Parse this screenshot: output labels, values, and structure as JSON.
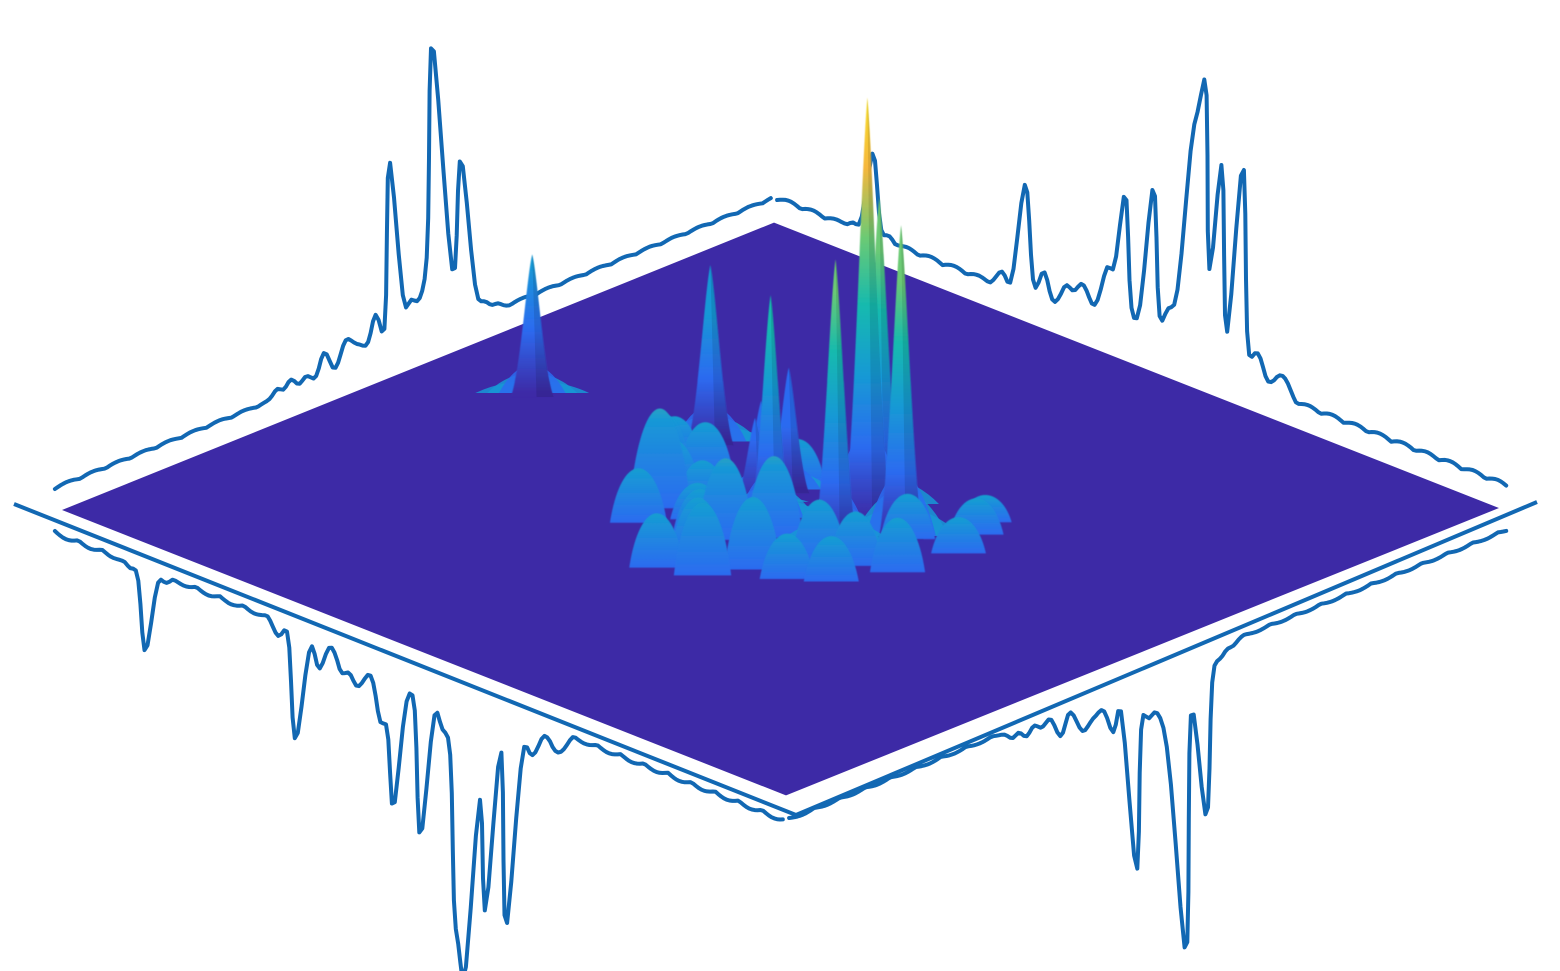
{
  "chart_data": {
    "type": "surface",
    "title": "",
    "xlabel": "",
    "ylabel": "",
    "zlabel": "",
    "grid": false,
    "legend": "none",
    "axes_visible": false,
    "xlim": [
      0,
      1
    ],
    "ylim": [
      0,
      1
    ],
    "zlim": [
      0,
      1
    ],
    "colormap": "parula",
    "colors": {
      "plane": "#3d2aa6",
      "projection_line": "#1268b3",
      "colormap_stops": [
        "#3d2aa6",
        "#2c6bf0",
        "#1898d6",
        "#13b9b0",
        "#6cca74",
        "#f6b73c",
        "#f8e02a"
      ]
    },
    "peaks": [
      {
        "u": 0.128,
        "v": 0.532,
        "height": 0.33,
        "width": 0.01
      },
      {
        "u": 0.335,
        "v": 0.57,
        "height": 0.42,
        "width": 0.012
      },
      {
        "u": 0.452,
        "v": 0.522,
        "height": 0.21,
        "width": 0.009
      },
      {
        "u": 0.47,
        "v": 0.495,
        "height": 0.2,
        "width": 0.009
      },
      {
        "u": 0.472,
        "v": 0.54,
        "height": 0.29,
        "width": 0.009
      },
      {
        "u": 0.508,
        "v": 0.478,
        "height": 0.53,
        "width": 0.009
      },
      {
        "u": 0.56,
        "v": 0.577,
        "height": 0.73,
        "width": 0.01
      },
      {
        "u": 0.575,
        "v": 0.545,
        "height": 1.0,
        "width": 0.011
      },
      {
        "u": 0.6,
        "v": 0.475,
        "height": 0.68,
        "width": 0.01
      },
      {
        "u": 0.63,
        "v": 0.536,
        "height": 0.74,
        "width": 0.01
      },
      {
        "u": 0.415,
        "v": 0.418,
        "height": 0.11,
        "width": 0.01
      },
      {
        "u": 0.365,
        "v": 0.475,
        "height": 0.07,
        "width": 0.008
      },
      {
        "u": 0.4,
        "v": 0.452,
        "height": 0.06,
        "width": 0.008
      },
      {
        "u": 0.392,
        "v": 0.505,
        "height": 0.06,
        "width": 0.008
      },
      {
        "u": 0.345,
        "v": 0.51,
        "height": 0.05,
        "width": 0.007
      },
      {
        "u": 0.425,
        "v": 0.378,
        "height": 0.06,
        "width": 0.008
      },
      {
        "u": 0.44,
        "v": 0.452,
        "height": 0.05,
        "width": 0.007
      },
      {
        "u": 0.46,
        "v": 0.425,
        "height": 0.04,
        "width": 0.007
      },
      {
        "u": 0.488,
        "v": 0.4,
        "height": 0.05,
        "width": 0.007
      },
      {
        "u": 0.515,
        "v": 0.408,
        "height": 0.09,
        "width": 0.008
      },
      {
        "u": 0.545,
        "v": 0.445,
        "height": 0.09,
        "width": 0.008
      },
      {
        "u": 0.532,
        "v": 0.352,
        "height": 0.07,
        "width": 0.008
      },
      {
        "u": 0.515,
        "v": 0.312,
        "height": 0.06,
        "width": 0.007
      },
      {
        "u": 0.56,
        "v": 0.33,
        "height": 0.08,
        "width": 0.008
      },
      {
        "u": 0.585,
        "v": 0.375,
        "height": 0.08,
        "width": 0.008
      },
      {
        "u": 0.62,
        "v": 0.432,
        "height": 0.07,
        "width": 0.008
      },
      {
        "u": 0.65,
        "v": 0.452,
        "height": 0.06,
        "width": 0.007
      },
      {
        "u": 0.625,
        "v": 0.382,
        "height": 0.05,
        "width": 0.007
      },
      {
        "u": 0.66,
        "v": 0.408,
        "height": 0.05,
        "width": 0.007
      },
      {
        "u": 0.69,
        "v": 0.47,
        "height": 0.06,
        "width": 0.007
      },
      {
        "u": 0.47,
        "v": 0.555,
        "height": 0.05,
        "width": 0.007
      },
      {
        "u": 0.64,
        "v": 0.535,
        "height": 0.05,
        "width": 0.007
      },
      {
        "u": 0.7,
        "v": 0.545,
        "height": 0.04,
        "width": 0.007
      },
      {
        "u": 0.68,
        "v": 0.59,
        "height": 0.04,
        "width": 0.007
      },
      {
        "u": 0.665,
        "v": 0.618,
        "height": 0.03,
        "width": 0.006
      }
    ]
  }
}
